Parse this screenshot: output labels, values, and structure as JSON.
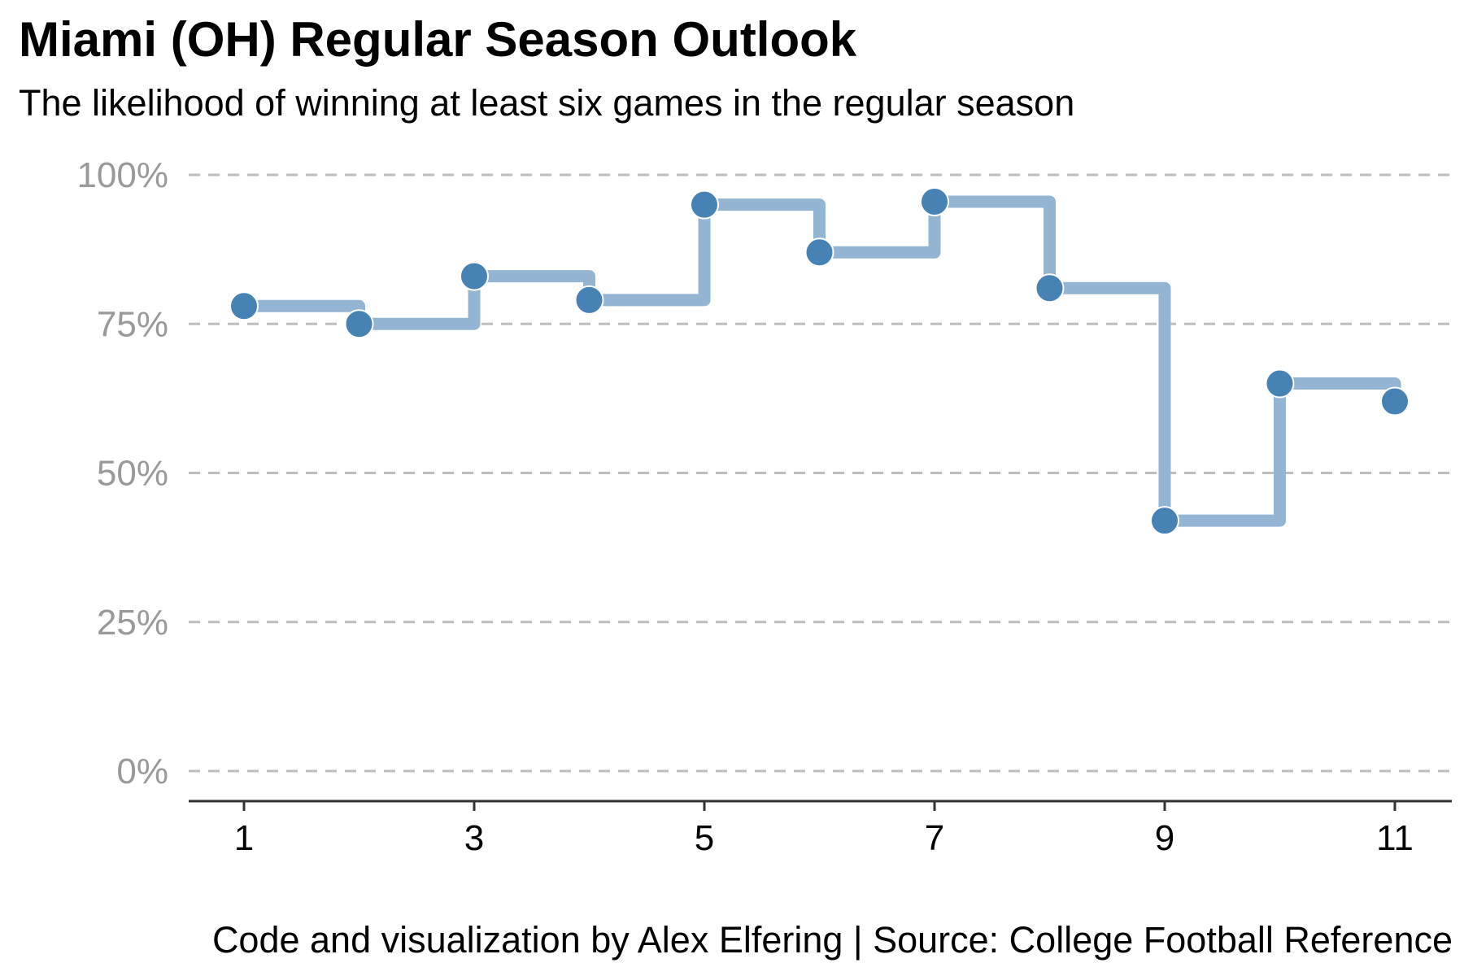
{
  "chart_data": {
    "type": "line",
    "step": true,
    "title": "Miami (OH) Regular Season Outlook",
    "subtitle": "The likelihood of winning at least six games in the regular season",
    "caption": "Code and visualization by Alex Elfering | Source: College Football Reference",
    "xlabel": "",
    "ylabel": "",
    "x": [
      1,
      2,
      3,
      4,
      5,
      6,
      7,
      8,
      9,
      10,
      11
    ],
    "series": [
      {
        "values": [
          0.78,
          0.75,
          0.83,
          0.79,
          0.95,
          0.87,
          0.955,
          0.81,
          0.42,
          0.65,
          0.62
        ]
      }
    ],
    "xlim": [
      0.5,
      11.5
    ],
    "ylim": [
      0,
      1
    ],
    "x_ticks": [
      1,
      3,
      5,
      7,
      9,
      11
    ],
    "y_ticks": [
      0,
      0.25,
      0.5,
      0.75,
      1
    ],
    "y_tick_labels": [
      "0%",
      "25%",
      "50%",
      "75%",
      "100%"
    ],
    "grid": "horizontal-dashed",
    "legend": "none",
    "colors": {
      "step_line": "#93b4d3",
      "points": "#4682b4",
      "gridlines": "#bdbdbd",
      "y_tick_text": "#999999",
      "x_axis": "#333333"
    }
  }
}
